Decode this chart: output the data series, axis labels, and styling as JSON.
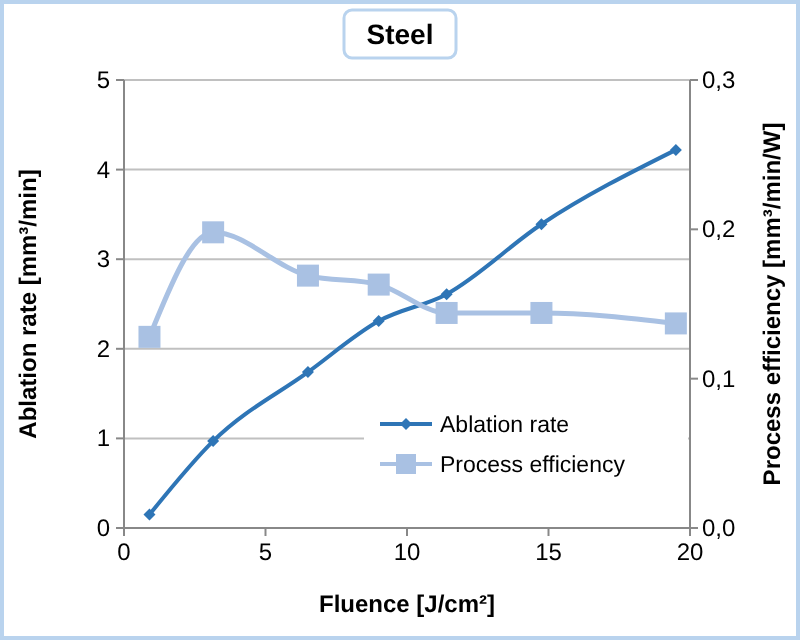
{
  "chart_data": {
    "type": "line",
    "title": "Steel",
    "xlabel": "Fluence [J/cm²]",
    "ylabel": "Ablation rate [mm³/min]",
    "y2label": "Process efficiency  [mm³/min/W]",
    "x": [
      0.9,
      3.15,
      6.5,
      9.0,
      11.4,
      14.75,
      19.5
    ],
    "series": [
      {
        "name": "Ablation rate",
        "color": "#2e75b6",
        "marker": "diamond",
        "values": [
          0.15,
          0.97,
          1.74,
          2.31,
          2.61,
          3.39,
          4.22
        ]
      },
      {
        "name": "Process efficiency",
        "color": "#a9c1e3",
        "marker": "square",
        "axis": "y2",
        "values": [
          0.128,
          0.198,
          0.169,
          0.163,
          0.144,
          0.144,
          0.137
        ]
      }
    ],
    "xlim": [
      0,
      20
    ],
    "xticks": [
      0,
      5,
      10,
      15,
      20
    ],
    "ylim": [
      0,
      5
    ],
    "yticks": [
      0,
      1,
      2,
      3,
      4,
      5
    ],
    "y2lim": [
      0,
      0.3
    ],
    "y2ticks": [
      {
        "value": 0,
        "label": "0,0"
      },
      {
        "value": 0.1,
        "label": "0,1"
      },
      {
        "value": 0.2,
        "label": "0,2"
      },
      {
        "value": 0.3,
        "label": "0,3"
      }
    ],
    "grid": "y",
    "legend": "bottom right"
  }
}
